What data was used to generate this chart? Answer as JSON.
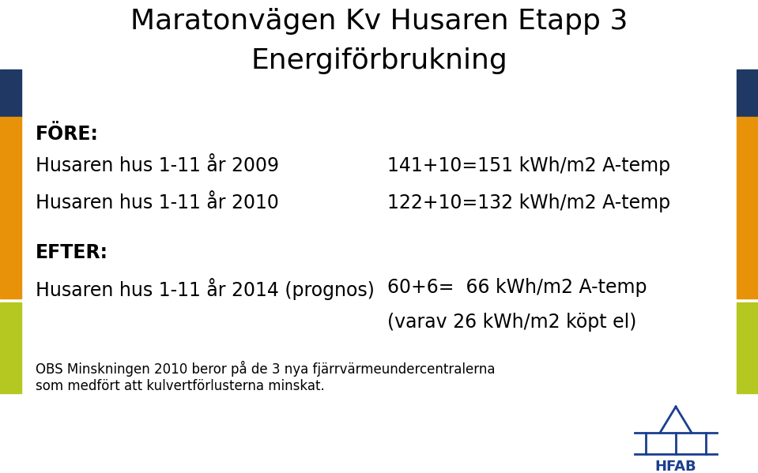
{
  "title_line1": "Maratonvägen Kv Husaren Etapp 3",
  "title_line2": "Energiförbrukning",
  "fore_label": "FÖRE:",
  "line1_left": "Husaren hus 1-11 år 2009",
  "line1_right": "141+10=151 kWh/m2 A-temp",
  "line2_left": "Husaren hus 1-11 år 2010",
  "line2_right": "122+10=132 kWh/m2 A-temp",
  "efter_label": "EFTER:",
  "line3_left": "Husaren hus 1-11 år 2014 (prognos)",
  "line3_right": "60+6=  66 kWh/m2 A-temp",
  "line4_right": "(varav 26 kWh/m2 köpt el)",
  "obs_line1": "OBS Minskningen 2010 beror på de 3 nya fjärrvärmeundercentralerna",
  "obs_line2": "som medfört att kulvertförlusterna minskat.",
  "bg_color": "#ffffff",
  "text_color": "#000000",
  "title_fontsize": 26,
  "header_fontsize": 17,
  "body_fontsize": 17,
  "obs_fontsize": 12,
  "bar_blue_color": "#1f3864",
  "bar_orange_color": "#e8920a",
  "bar_green_color": "#b5c822",
  "hfab_color": "#1a3f8f"
}
